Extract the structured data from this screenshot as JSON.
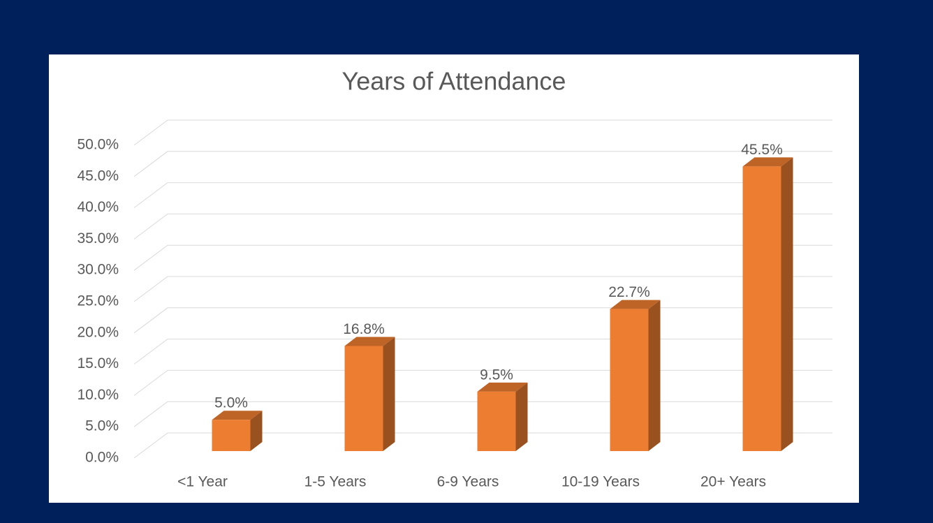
{
  "chart_data": {
    "type": "bar3d",
    "title": "Years of Attendance",
    "categories": [
      "<1 Year",
      "1-5 Years",
      "6-9 Years",
      "10-19 Years",
      "20+ Years"
    ],
    "values": [
      5.0,
      16.8,
      9.5,
      22.7,
      45.5
    ],
    "value_labels": [
      "5.0%",
      "16.8%",
      "9.5%",
      "22.7%",
      "45.5%"
    ],
    "color": "#ed7d31",
    "ylim": [
      0,
      50
    ],
    "yticks": [
      {
        "value": 0,
        "label": "0.0%"
      },
      {
        "value": 5,
        "label": "5.0%"
      },
      {
        "value": 10,
        "label": "10.0%"
      },
      {
        "value": 15,
        "label": "15.0%"
      },
      {
        "value": 20,
        "label": "20.0%"
      },
      {
        "value": 25,
        "label": "25.0%"
      },
      {
        "value": 30,
        "label": "30.0%"
      },
      {
        "value": 35,
        "label": "35.0%"
      },
      {
        "value": 40,
        "label": "40.0%"
      },
      {
        "value": 45,
        "label": "45.0%"
      },
      {
        "value": 50,
        "label": "50.0%"
      }
    ],
    "grid": true
  }
}
